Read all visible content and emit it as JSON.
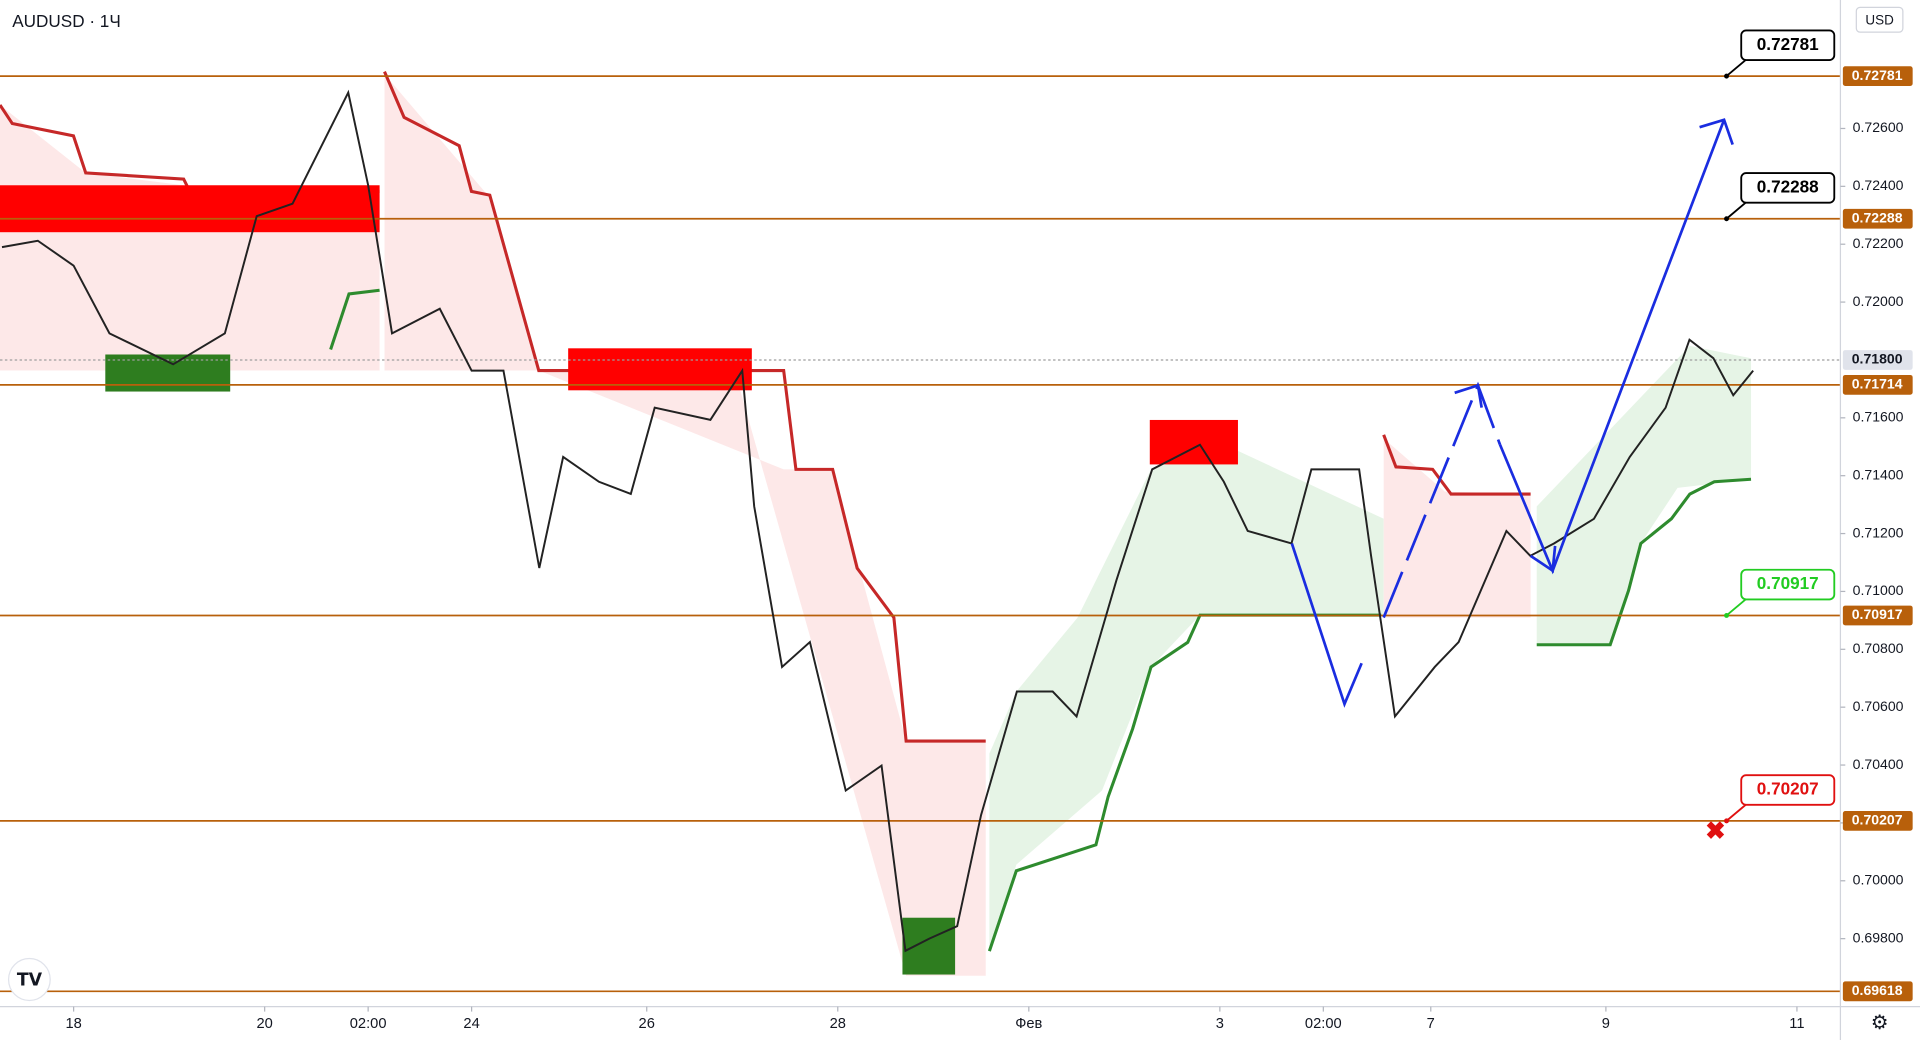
{
  "chart_data": {
    "type": "line",
    "title": "AUDUSD · 1Ч",
    "currency": "USD",
    "x": [
      -18,
      -9,
      0,
      9,
      25,
      38,
      46,
      55,
      69,
      74,
      80,
      92,
      100,
      108,
      117,
      123,
      132,
      140,
      146,
      160,
      168,
      171,
      178,
      185,
      194,
      203,
      209,
      215,
      222,
      228,
      237,
      246,
      252,
      262,
      271,
      283,
      289,
      295,
      306,
      311,
      323,
      326,
      332,
      342,
      348,
      360,
      366,
      372,
      382,
      391,
      400,
      406,
      412,
      417,
      422
    ],
    "values": [
      0.7219,
      0.72212,
      0.72126,
      0.71892,
      0.71785,
      0.71892,
      0.72297,
      0.7234,
      0.72724,
      0.72404,
      0.71892,
      0.71977,
      0.71763,
      0.71763,
      0.71081,
      0.71465,
      0.71379,
      0.71337,
      0.71635,
      0.71593,
      0.71763,
      0.71294,
      0.70739,
      0.70825,
      0.70312,
      0.70398,
      0.69758,
      0.698,
      0.69843,
      0.70227,
      0.70654,
      0.70654,
      0.70568,
      0.71038,
      0.71422,
      0.71507,
      0.71379,
      0.71209,
      0.71166,
      0.71422,
      0.71422,
      0.71123,
      0.70568,
      0.70739,
      0.70825,
      0.71209,
      0.71123,
      0.71166,
      0.71251,
      0.71465,
      0.71635,
      0.7187,
      0.71806,
      0.71678,
      0.71763
    ],
    "color": "#222222",
    "xlim": [
      -18.5,
      443
    ],
    "ylim": [
      0.69565,
      0.73044
    ],
    "xticks": [
      {
        "value": 0,
        "label": "18"
      },
      {
        "value": 48,
        "label": "20"
      },
      {
        "value": 74,
        "label": "02:00"
      },
      {
        "value": 100,
        "label": "24"
      },
      {
        "value": 144,
        "label": "26"
      },
      {
        "value": 192,
        "label": "28"
      },
      {
        "value": 240,
        "label": "Фев"
      },
      {
        "value": 288,
        "label": "3"
      },
      {
        "value": 314,
        "label": "02:00"
      },
      {
        "value": 341,
        "label": "7"
      },
      {
        "value": 385,
        "label": "9"
      },
      {
        "value": 433,
        "label": "11"
      }
    ],
    "yticks": [
      {
        "value": 0.698,
        "label": "0.69800"
      },
      {
        "value": 0.7,
        "label": "0.70000"
      },
      {
        "value": 0.702,
        "label": "0.70200"
      },
      {
        "value": 0.704,
        "label": "0.70400"
      },
      {
        "value": 0.706,
        "label": "0.70600"
      },
      {
        "value": 0.708,
        "label": "0.70800"
      },
      {
        "value": 0.71,
        "label": "0.71000"
      },
      {
        "value": 0.712,
        "label": "0.71200"
      },
      {
        "value": 0.714,
        "label": "0.71400"
      },
      {
        "value": 0.716,
        "label": "0.71600"
      },
      {
        "value": 0.72,
        "label": "0.72000"
      },
      {
        "value": 0.722,
        "label": "0.72200"
      },
      {
        "value": 0.724,
        "label": "0.72400"
      },
      {
        "value": 0.726,
        "label": "0.72600"
      }
    ],
    "levels": [
      {
        "value": 0.72781,
        "color": "#b8600b",
        "callout": "#000000"
      },
      {
        "value": 0.72288,
        "color": "#b8600b",
        "callout": "#000000"
      },
      {
        "value": 0.718,
        "label": "0.71800",
        "color": "#9e9e9e",
        "dotted": true
      },
      {
        "value": 0.71714,
        "color": "#b8600b"
      },
      {
        "value": 0.70917,
        "color": "#b8600b",
        "callout": "#22cc22"
      },
      {
        "value": 0.70207,
        "color": "#b8600b",
        "callout": "#e01010"
      },
      {
        "value": 0.69618,
        "color": "#b8600b"
      }
    ]
  }
}
